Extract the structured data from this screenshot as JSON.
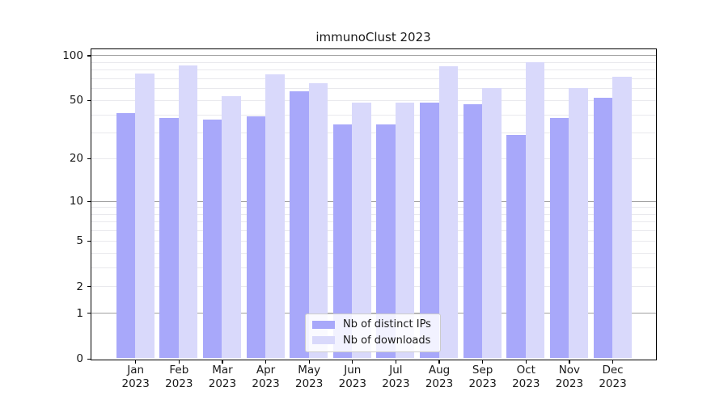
{
  "title": "immunoClust 2023",
  "colors": {
    "distinct_ips": "#a8a8fa",
    "downloads": "#d9d9fb",
    "grid_major": "#a0a0a0",
    "grid_minor": "#e9e9ed",
    "axis": "#000000",
    "text": "#1a1a1a"
  },
  "legend": {
    "items": [
      {
        "label": "Nb of distinct IPs",
        "series_key": "distinct_ips"
      },
      {
        "label": "Nb of downloads",
        "series_key": "downloads"
      }
    ]
  },
  "axes": {
    "x_months": [
      "Jan",
      "Feb",
      "Mar",
      "Apr",
      "May",
      "Jun",
      "Jul",
      "Aug",
      "Sep",
      "Oct",
      "Nov",
      "Dec"
    ],
    "x_year": "2023",
    "y_tick_labels": [
      "0",
      "1",
      "2",
      "5",
      "10",
      "20",
      "50",
      "100"
    ]
  },
  "chart_data": {
    "type": "bar",
    "title": "immunoClust 2023",
    "categories": [
      "Jan 2023",
      "Feb 2023",
      "Mar 2023",
      "Apr 2023",
      "May 2023",
      "Jun 2023",
      "Jul 2023",
      "Aug 2023",
      "Sep 2023",
      "Oct 2023",
      "Nov 2023",
      "Dec 2023"
    ],
    "series": [
      {
        "name": "Nb of distinct IPs",
        "values": [
          41,
          38,
          37,
          39,
          57,
          34,
          34,
          48,
          47,
          29,
          38,
          52
        ]
      },
      {
        "name": "Nb of downloads",
        "values": [
          75,
          85,
          53,
          74,
          65,
          48,
          48,
          84,
          60,
          90,
          60,
          72
        ]
      }
    ],
    "xlabel": "",
    "ylabel": "",
    "y_scale": "log-like (log10 of 1+x)",
    "y_ticks": [
      0,
      1,
      2,
      5,
      10,
      20,
      50,
      100
    ],
    "gridlines_major": [
      1,
      10,
      100
    ],
    "gridlines_minor": [
      2,
      3,
      4,
      5,
      6,
      7,
      8,
      9,
      20,
      30,
      40,
      50,
      60,
      70,
      80,
      90
    ],
    "ylim": [
      0,
      111
    ],
    "grid": true,
    "legend_position": "lower center"
  }
}
